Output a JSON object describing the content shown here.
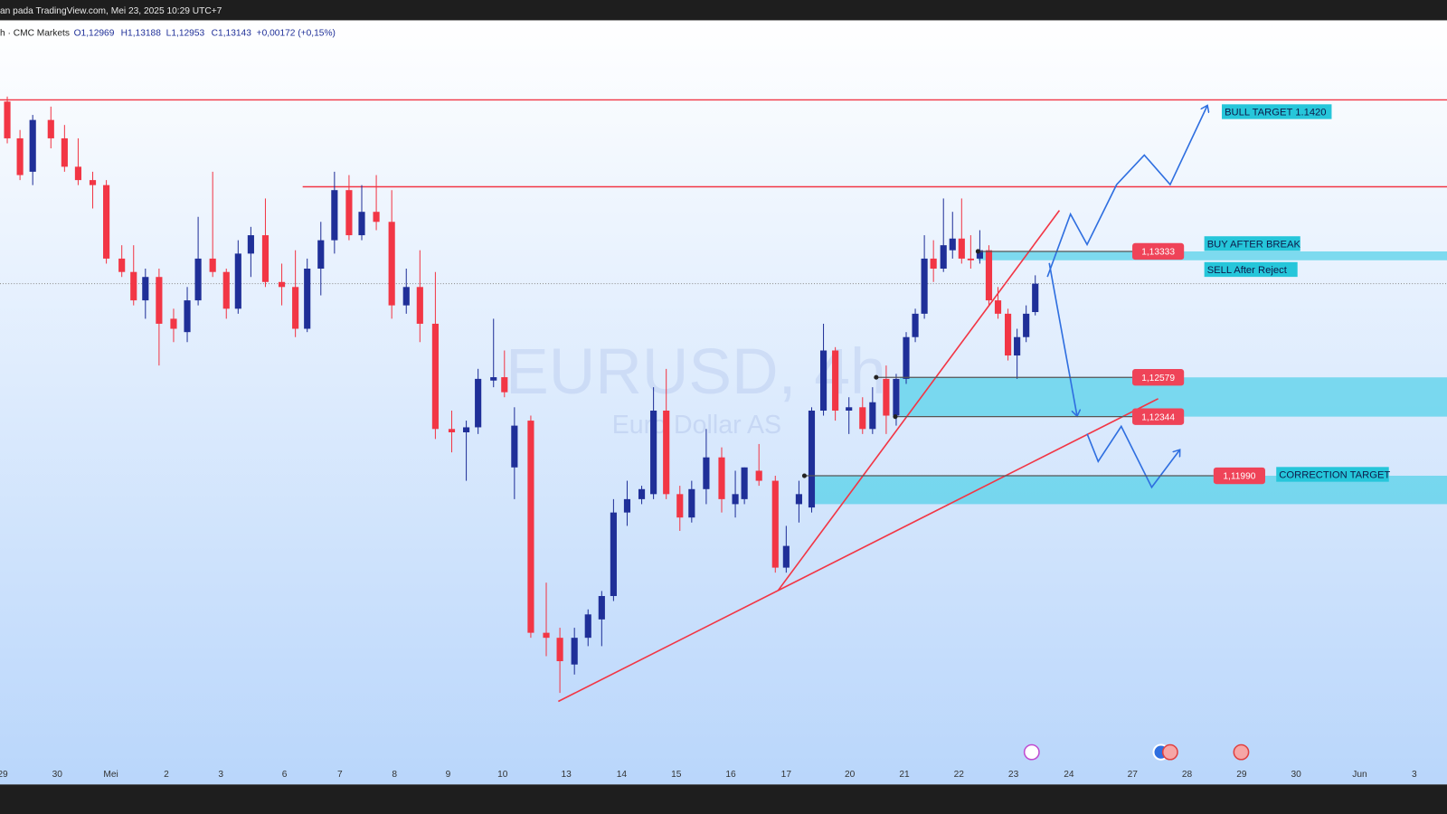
{
  "header": {
    "source": "an pada TradingView.com, Mei 23, 2025 10:29 UTC+7",
    "symbol": "h · CMC Markets",
    "open": "O1,12969",
    "high": "H1,13188",
    "low": "L1,12953",
    "close": "C1,13143",
    "change": "+0,00172 (+0,15%)"
  },
  "watermark": {
    "title": "EURUSD, 4h",
    "subtitle": "Euro Dollar AS"
  },
  "annotations": {
    "bull": "BULL TARGET 1.1420",
    "buy": "BUY AFTER BREAK",
    "sell": "SELL After Reject",
    "correction": "CORRECTION TARGET"
  },
  "chart_data": {
    "type": "candlestick",
    "up_color": "#1f2f98",
    "down_color": "#f23645",
    "x": [
      0.8,
      2.2,
      3.6,
      5.6,
      7.1,
      8.6,
      10.2,
      11.7,
      13.4,
      14.7,
      16.0,
      17.5,
      19.1,
      20.6,
      21.8,
      23.4,
      24.9,
      26.2,
      27.6,
      29.2,
      31.0,
      32.5,
      33.8,
      35.3,
      36.8,
      38.4,
      39.8,
      41.4,
      43.1,
      44.7,
      46.2,
      47.9,
      49.7,
      51.3,
      52.6,
      54.3,
      55.5,
      56.6,
      58.4,
      60.1,
      61.6,
      63.2,
      64.7,
      66.2,
      67.5,
      69.0,
      70.6,
      71.9,
      73.3,
      74.8,
      76.1,
      77.7,
      79.4,
      80.9,
      81.9,
      83.5,
      85.3,
      86.5,
      87.9,
      89.3,
      90.6,
      91.9,
      93.4,
      94.9,
      96.0,
      97.5,
      98.6,
      99.7,
      100.7,
      101.7,
      102.7,
      103.8,
      104.8,
      105.8,
      106.8,
      107.8,
      108.8,
      109.8,
      110.9,
      111.9,
      112.9,
      113.9
    ],
    "open": [
      1.1423,
      1.1401,
      1.1381,
      1.1412,
      1.1401,
      1.1384,
      1.1376,
      1.1373,
      1.1329,
      1.1321,
      1.1304,
      1.1318,
      1.1293,
      1.1285,
      1.1304,
      1.1329,
      1.1321,
      1.1299,
      1.1332,
      1.1343,
      1.1315,
      1.1312,
      1.1287,
      1.1323,
      1.134,
      1.137,
      1.1343,
      1.1357,
      1.1351,
      1.1301,
      1.1312,
      1.129,
      1.1227,
      1.1225,
      1.1228,
      1.1256,
      1.1258,
      1.1204,
      1.1232,
      1.1105,
      1.1102,
      1.1086,
      1.1102,
      1.1113,
      1.1127,
      1.1177,
      1.1185,
      1.1188,
      1.1238,
      1.1188,
      1.1174,
      1.1191,
      1.121,
      1.1182,
      1.1185,
      1.1202,
      1.1196,
      1.1144,
      1.1182,
      1.118,
      1.1238,
      1.1274,
      1.1238,
      1.124,
      1.1227,
      1.1257,
      1.1235,
      1.1257,
      1.1282,
      1.1296,
      1.1329,
      1.1323,
      1.1334,
      1.1341,
      1.1329,
      1.1329,
      1.1334,
      1.1304,
      1.1296,
      1.1271,
      1.1282,
      1.1297
    ],
    "high": [
      1.1426,
      1.1406,
      1.1415,
      1.142,
      1.1409,
      1.1401,
      1.1381,
      1.1376,
      1.1337,
      1.1337,
      1.1323,
      1.1323,
      1.1299,
      1.1312,
      1.1354,
      1.1381,
      1.1323,
      1.134,
      1.1348,
      1.1365,
      1.1326,
      1.1334,
      1.1329,
      1.1351,
      1.1381,
      1.1379,
      1.1373,
      1.1379,
      1.137,
      1.1323,
      1.1334,
      1.1321,
      1.1238,
      1.1232,
      1.1263,
      1.1293,
      1.1274,
      1.124,
      1.1235,
      1.1135,
      1.1108,
      1.1108,
      1.1119,
      1.113,
      1.1185,
      1.1196,
      1.1193,
      1.1252,
      1.1263,
      1.1193,
      1.1196,
      1.1227,
      1.1216,
      1.1202,
      1.1204,
      1.1218,
      1.1199,
      1.1169,
      1.1196,
      1.124,
      1.129,
      1.1276,
      1.1246,
      1.1246,
      1.1252,
      1.1265,
      1.126,
      1.1285,
      1.1299,
      1.1343,
      1.134,
      1.1365,
      1.1357,
      1.1365,
      1.1343,
      1.1346,
      1.1337,
      1.1312,
      1.1299,
      1.1287,
      1.1301,
      1.1319
    ],
    "low": [
      1.1398,
      1.1376,
      1.1373,
      1.1395,
      1.1381,
      1.1373,
      1.1359,
      1.1326,
      1.1318,
      1.1301,
      1.1293,
      1.1265,
      1.1279,
      1.1279,
      1.1301,
      1.1318,
      1.1293,
      1.1296,
      1.1318,
      1.1312,
      1.1301,
      1.1282,
      1.1285,
      1.1307,
      1.1332,
      1.134,
      1.134,
      1.1346,
      1.1293,
      1.1296,
      1.1279,
      1.1221,
      1.1213,
      1.1196,
      1.1224,
      1.1252,
      1.1246,
      1.1185,
      1.1102,
      1.1091,
      1.1069,
      1.108,
      1.1097,
      1.1097,
      1.1124,
      1.1169,
      1.1182,
      1.1185,
      1.1185,
      1.1166,
      1.1171,
      1.1182,
      1.1177,
      1.1174,
      1.1182,
      1.1193,
      1.1141,
      1.1141,
      1.1171,
      1.1177,
      1.1235,
      1.1232,
      1.1224,
      1.1224,
      1.1224,
      1.1224,
      1.1229,
      1.1254,
      1.1279,
      1.1293,
      1.1315,
      1.1321,
      1.1329,
      1.1326,
      1.1323,
      1.1326,
      1.1301,
      1.1293,
      1.1268,
      1.1257,
      1.1279,
      1.1295
    ],
    "close": [
      1.1401,
      1.1379,
      1.1412,
      1.1401,
      1.1384,
      1.1376,
      1.1373,
      1.1329,
      1.1321,
      1.1304,
      1.1318,
      1.129,
      1.1287,
      1.1304,
      1.1329,
      1.1321,
      1.1299,
      1.1332,
      1.1343,
      1.1315,
      1.1312,
      1.1287,
      1.1323,
      1.134,
      1.137,
      1.1343,
      1.1357,
      1.1351,
      1.1301,
      1.1312,
      1.129,
      1.1227,
      1.1225,
      1.1228,
      1.1257,
      1.1258,
      1.1249,
      1.1229,
      1.1105,
      1.1102,
      1.1088,
      1.1102,
      1.1116,
      1.1127,
      1.1177,
      1.1185,
      1.1191,
      1.1238,
      1.1188,
      1.1174,
      1.1191,
      1.121,
      1.1185,
      1.1188,
      1.1204,
      1.1196,
      1.1144,
      1.1157,
      1.1188,
      1.1238,
      1.1274,
      1.1238,
      1.124,
      1.1227,
      1.1243,
      1.1235,
      1.1257,
      1.1282,
      1.1296,
      1.1329,
      1.1323,
      1.1337,
      1.1341,
      1.1329,
      1.1328,
      1.1334,
      1.1304,
      1.1296,
      1.1271,
      1.1282,
      1.1296,
      1.1314
    ],
    "xlim": [
      0,
      159.2
    ],
    "xticks": [
      {
        "value": 0.3,
        "label": "29"
      },
      {
        "value": 6.3,
        "label": "30"
      },
      {
        "value": 12.2,
        "label": "Mei"
      },
      {
        "value": 18.3,
        "label": "2"
      },
      {
        "value": 24.3,
        "label": "3"
      },
      {
        "value": 31.3,
        "label": "6"
      },
      {
        "value": 37.4,
        "label": "7"
      },
      {
        "value": 43.4,
        "label": "8"
      },
      {
        "value": 49.3,
        "label": "9"
      },
      {
        "value": 55.3,
        "label": "10"
      },
      {
        "value": 62.3,
        "label": "13"
      },
      {
        "value": 68.4,
        "label": "14"
      },
      {
        "value": 74.4,
        "label": "15"
      },
      {
        "value": 80.4,
        "label": "16"
      },
      {
        "value": 86.5,
        "label": "17"
      },
      {
        "value": 93.5,
        "label": "20"
      },
      {
        "value": 99.5,
        "label": "21"
      },
      {
        "value": 105.5,
        "label": "22"
      },
      {
        "value": 111.5,
        "label": "23"
      },
      {
        "value": 117.6,
        "label": "24"
      },
      {
        "value": 124.6,
        "label": "27"
      },
      {
        "value": 130.6,
        "label": "28"
      },
      {
        "value": 136.6,
        "label": "29"
      },
      {
        "value": 142.6,
        "label": "30"
      },
      {
        "value": 149.6,
        "label": "Jun"
      },
      {
        "value": 155.6,
        "label": "3"
      }
    ],
    "ylim": [
      1.1028,
      1.147
    ],
    "levels": [
      {
        "value": 1.13333,
        "label": "1,13333",
        "x_start": 107.6
      },
      {
        "value": 1.12579,
        "label": "1,12579",
        "x_start": 96.4
      },
      {
        "value": 1.12344,
        "label": "1,12344",
        "x_start": 98.5
      },
      {
        "value": 1.1199,
        "label": "1,11990",
        "x_start": 88.5
      }
    ],
    "zones": [
      {
        "from": 1.13333,
        "to": 1.1328,
        "x_start": 107.6
      },
      {
        "from": 1.12579,
        "to": 1.12344,
        "x_start": 99.0
      },
      {
        "from": 1.1199,
        "to": 1.1182,
        "x_start": 89.3
      }
    ],
    "resistance_lines": [
      {
        "value": 1.1424,
        "x_start": 0
      },
      {
        "value": 1.1372,
        "x_start": 33.3
      }
    ]
  }
}
